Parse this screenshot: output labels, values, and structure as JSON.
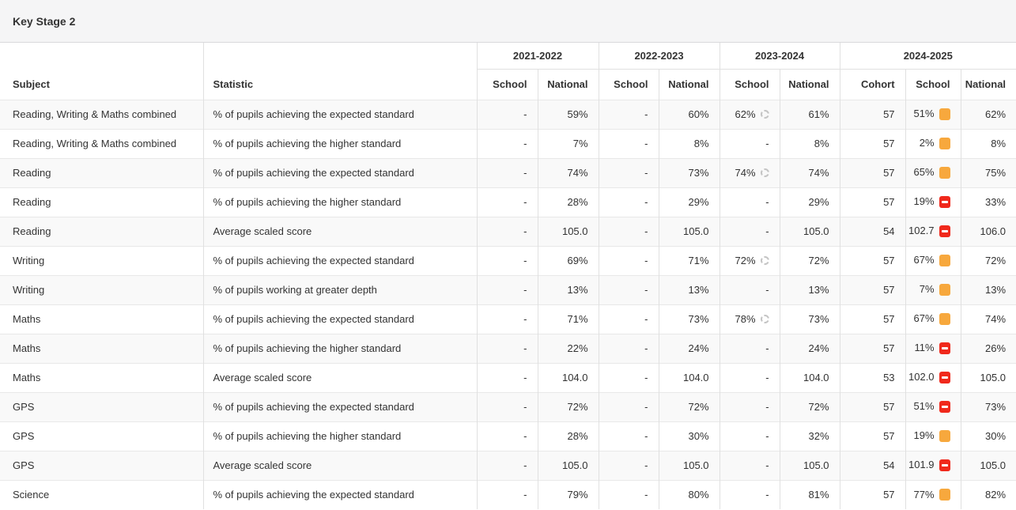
{
  "panel": {
    "title": "Key Stage 2"
  },
  "table": {
    "subject_header": "Subject",
    "statistic_header": "Statistic",
    "year_groups": [
      {
        "label": "2021-2022",
        "columns": [
          "School",
          "National"
        ]
      },
      {
        "label": "2022-2023",
        "columns": [
          "School",
          "National"
        ]
      },
      {
        "label": "2023-2024",
        "columns": [
          "School",
          "National"
        ]
      },
      {
        "label": "2024-2025",
        "columns": [
          "Cohort",
          "School",
          "National"
        ]
      }
    ],
    "sub_headers": [
      "School",
      "National",
      "School",
      "National",
      "School",
      "National",
      "Cohort",
      "School",
      "National"
    ],
    "rows": [
      {
        "subject": "Reading, Writing & Maths combined",
        "statistic": "% of pupils achieving the expected standard",
        "cells": [
          {
            "v": "-"
          },
          {
            "v": "59%"
          },
          {
            "v": "-"
          },
          {
            "v": "60%"
          },
          {
            "v": "62%",
            "icon": "dashed_circle"
          },
          {
            "v": "61%"
          },
          {
            "v": "57"
          },
          {
            "v": "51%",
            "icon": "amber"
          },
          {
            "v": "62%"
          }
        ]
      },
      {
        "subject": "Reading, Writing & Maths combined",
        "statistic": "% of pupils achieving the higher standard",
        "cells": [
          {
            "v": "-"
          },
          {
            "v": "7%"
          },
          {
            "v": "-"
          },
          {
            "v": "8%"
          },
          {
            "v": "-"
          },
          {
            "v": "8%"
          },
          {
            "v": "57"
          },
          {
            "v": "2%",
            "icon": "amber"
          },
          {
            "v": "8%"
          }
        ]
      },
      {
        "subject": "Reading",
        "statistic": "% of pupils achieving the expected standard",
        "cells": [
          {
            "v": "-"
          },
          {
            "v": "74%"
          },
          {
            "v": "-"
          },
          {
            "v": "73%"
          },
          {
            "v": "74%",
            "icon": "dashed_circle"
          },
          {
            "v": "74%"
          },
          {
            "v": "57"
          },
          {
            "v": "65%",
            "icon": "amber"
          },
          {
            "v": "75%"
          }
        ]
      },
      {
        "subject": "Reading",
        "statistic": "% of pupils achieving the higher standard",
        "cells": [
          {
            "v": "-"
          },
          {
            "v": "28%"
          },
          {
            "v": "-"
          },
          {
            "v": "29%"
          },
          {
            "v": "-"
          },
          {
            "v": "29%"
          },
          {
            "v": "57"
          },
          {
            "v": "19%",
            "icon": "red_minus"
          },
          {
            "v": "33%"
          }
        ]
      },
      {
        "subject": "Reading",
        "statistic": "Average scaled score",
        "cells": [
          {
            "v": "-"
          },
          {
            "v": "105.0"
          },
          {
            "v": "-"
          },
          {
            "v": "105.0"
          },
          {
            "v": "-"
          },
          {
            "v": "105.0"
          },
          {
            "v": "54"
          },
          {
            "v": "102.7",
            "icon": "red_minus"
          },
          {
            "v": "106.0"
          }
        ]
      },
      {
        "subject": "Writing",
        "statistic": "% of pupils achieving the expected standard",
        "cells": [
          {
            "v": "-"
          },
          {
            "v": "69%"
          },
          {
            "v": "-"
          },
          {
            "v": "71%"
          },
          {
            "v": "72%",
            "icon": "dashed_circle"
          },
          {
            "v": "72%"
          },
          {
            "v": "57"
          },
          {
            "v": "67%",
            "icon": "amber"
          },
          {
            "v": "72%"
          }
        ]
      },
      {
        "subject": "Writing",
        "statistic": "% of pupils working at greater depth",
        "cells": [
          {
            "v": "-"
          },
          {
            "v": "13%"
          },
          {
            "v": "-"
          },
          {
            "v": "13%"
          },
          {
            "v": "-"
          },
          {
            "v": "13%"
          },
          {
            "v": "57"
          },
          {
            "v": "7%",
            "icon": "amber"
          },
          {
            "v": "13%"
          }
        ]
      },
      {
        "subject": "Maths",
        "statistic": "% of pupils achieving the expected standard",
        "cells": [
          {
            "v": "-"
          },
          {
            "v": "71%"
          },
          {
            "v": "-"
          },
          {
            "v": "73%"
          },
          {
            "v": "78%",
            "icon": "dashed_circle"
          },
          {
            "v": "73%"
          },
          {
            "v": "57"
          },
          {
            "v": "67%",
            "icon": "amber"
          },
          {
            "v": "74%"
          }
        ]
      },
      {
        "subject": "Maths",
        "statistic": "% of pupils achieving the higher standard",
        "cells": [
          {
            "v": "-"
          },
          {
            "v": "22%"
          },
          {
            "v": "-"
          },
          {
            "v": "24%"
          },
          {
            "v": "-"
          },
          {
            "v": "24%"
          },
          {
            "v": "57"
          },
          {
            "v": "11%",
            "icon": "red_minus"
          },
          {
            "v": "26%"
          }
        ]
      },
      {
        "subject": "Maths",
        "statistic": "Average scaled score",
        "cells": [
          {
            "v": "-"
          },
          {
            "v": "104.0"
          },
          {
            "v": "-"
          },
          {
            "v": "104.0"
          },
          {
            "v": "-"
          },
          {
            "v": "104.0"
          },
          {
            "v": "53"
          },
          {
            "v": "102.0",
            "icon": "red_minus"
          },
          {
            "v": "105.0"
          }
        ]
      },
      {
        "subject": "GPS",
        "statistic": "% of pupils achieving the expected standard",
        "cells": [
          {
            "v": "-"
          },
          {
            "v": "72%"
          },
          {
            "v": "-"
          },
          {
            "v": "72%"
          },
          {
            "v": "-"
          },
          {
            "v": "72%"
          },
          {
            "v": "57"
          },
          {
            "v": "51%",
            "icon": "red_minus"
          },
          {
            "v": "73%"
          }
        ]
      },
      {
        "subject": "GPS",
        "statistic": "% of pupils achieving the higher standard",
        "cells": [
          {
            "v": "-"
          },
          {
            "v": "28%"
          },
          {
            "v": "-"
          },
          {
            "v": "30%"
          },
          {
            "v": "-"
          },
          {
            "v": "32%"
          },
          {
            "v": "57"
          },
          {
            "v": "19%",
            "icon": "amber"
          },
          {
            "v": "30%"
          }
        ]
      },
      {
        "subject": "GPS",
        "statistic": "Average scaled score",
        "cells": [
          {
            "v": "-"
          },
          {
            "v": "105.0"
          },
          {
            "v": "-"
          },
          {
            "v": "105.0"
          },
          {
            "v": "-"
          },
          {
            "v": "105.0"
          },
          {
            "v": "54"
          },
          {
            "v": "101.9",
            "icon": "red_minus"
          },
          {
            "v": "105.0"
          }
        ]
      },
      {
        "subject": "Science",
        "statistic": "% of pupils achieving the expected standard",
        "cells": [
          {
            "v": "-"
          },
          {
            "v": "79%"
          },
          {
            "v": "-"
          },
          {
            "v": "80%"
          },
          {
            "v": "-"
          },
          {
            "v": "81%"
          },
          {
            "v": "57"
          },
          {
            "v": "77%",
            "icon": "amber"
          },
          {
            "v": "82%"
          }
        ]
      }
    ]
  },
  "icons": {
    "amber": {
      "name": "rating-below-average-icon",
      "color": "#f7a83d"
    },
    "red_minus": {
      "name": "rating-well-below-average-icon",
      "color": "#f0291c"
    },
    "dashed_circle": {
      "name": "provisional-result-icon",
      "color": "#c4c4c4"
    }
  },
  "colors": {
    "text": "#333333",
    "row_alt_background": "#f9f9f9",
    "panel_header_background": "#f5f5f6"
  }
}
